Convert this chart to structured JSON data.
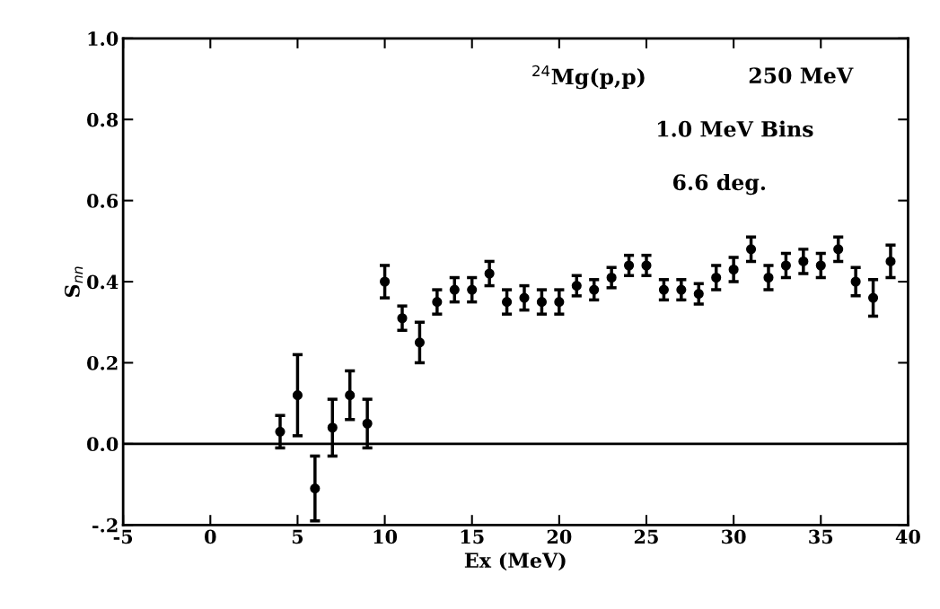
{
  "chart_data": {
    "type": "scatter",
    "xlabel": "Ex (MeV)",
    "ylabel": "S$_{nn}$",
    "annotations": [
      "$^{24}$Mg(p,p)",
      "250 MeV",
      "1.0 MeV Bins",
      "6.6 deg."
    ],
    "x": [
      4,
      5,
      6,
      7,
      8,
      9,
      10,
      11,
      12,
      13,
      14,
      15,
      16,
      17,
      18,
      19,
      20,
      21,
      22,
      23,
      24,
      25,
      26,
      27,
      28,
      29,
      30,
      31,
      32,
      33,
      34,
      35,
      36,
      37,
      38,
      39
    ],
    "series": [
      {
        "color": "#000000",
        "values": [
          0.03,
          0.12,
          -0.11,
          0.04,
          0.12,
          0.05,
          0.4,
          0.31,
          0.25,
          0.35,
          0.38,
          0.38,
          0.42,
          0.35,
          0.36,
          0.35,
          0.35,
          0.39,
          0.38,
          0.41,
          0.44,
          0.44,
          0.38,
          0.38,
          0.37,
          0.41,
          0.43,
          0.48,
          0.41,
          0.44,
          0.45,
          0.44,
          0.48,
          0.4,
          0.36,
          0.45
        ],
        "errors": [
          0.04,
          0.1,
          0.08,
          0.07,
          0.06,
          0.06,
          0.04,
          0.03,
          0.05,
          0.03,
          0.03,
          0.03,
          0.03,
          0.03,
          0.03,
          0.03,
          0.03,
          0.025,
          0.025,
          0.025,
          0.025,
          0.025,
          0.025,
          0.025,
          0.025,
          0.03,
          0.03,
          0.03,
          0.03,
          0.03,
          0.03,
          0.03,
          0.03,
          0.035,
          0.045,
          0.04
        ]
      }
    ],
    "xlim": [
      -5,
      40
    ],
    "xticks": [
      -5,
      0,
      5,
      10,
      15,
      20,
      25,
      30,
      35,
      40
    ],
    "ylim": [
      -0.2,
      1.0
    ],
    "yticks": [
      {
        "value": -0.2,
        "label": "-.2"
      },
      {
        "value": 0.0,
        "label": "0.0"
      },
      {
        "value": 0.2,
        "label": "0.2"
      },
      {
        "value": 0.4,
        "label": "0.4"
      },
      {
        "value": 0.6,
        "label": "0.6"
      },
      {
        "value": 0.8,
        "label": "0.8"
      },
      {
        "value": 1.0,
        "label": "1.0"
      }
    ],
    "ref_lines": [
      {
        "axis": "y",
        "value": 0,
        "color": "#000000",
        "line_style": "solid"
      }
    ],
    "grid": false,
    "legend": false,
    "marker": "circle",
    "line_style": "none"
  }
}
